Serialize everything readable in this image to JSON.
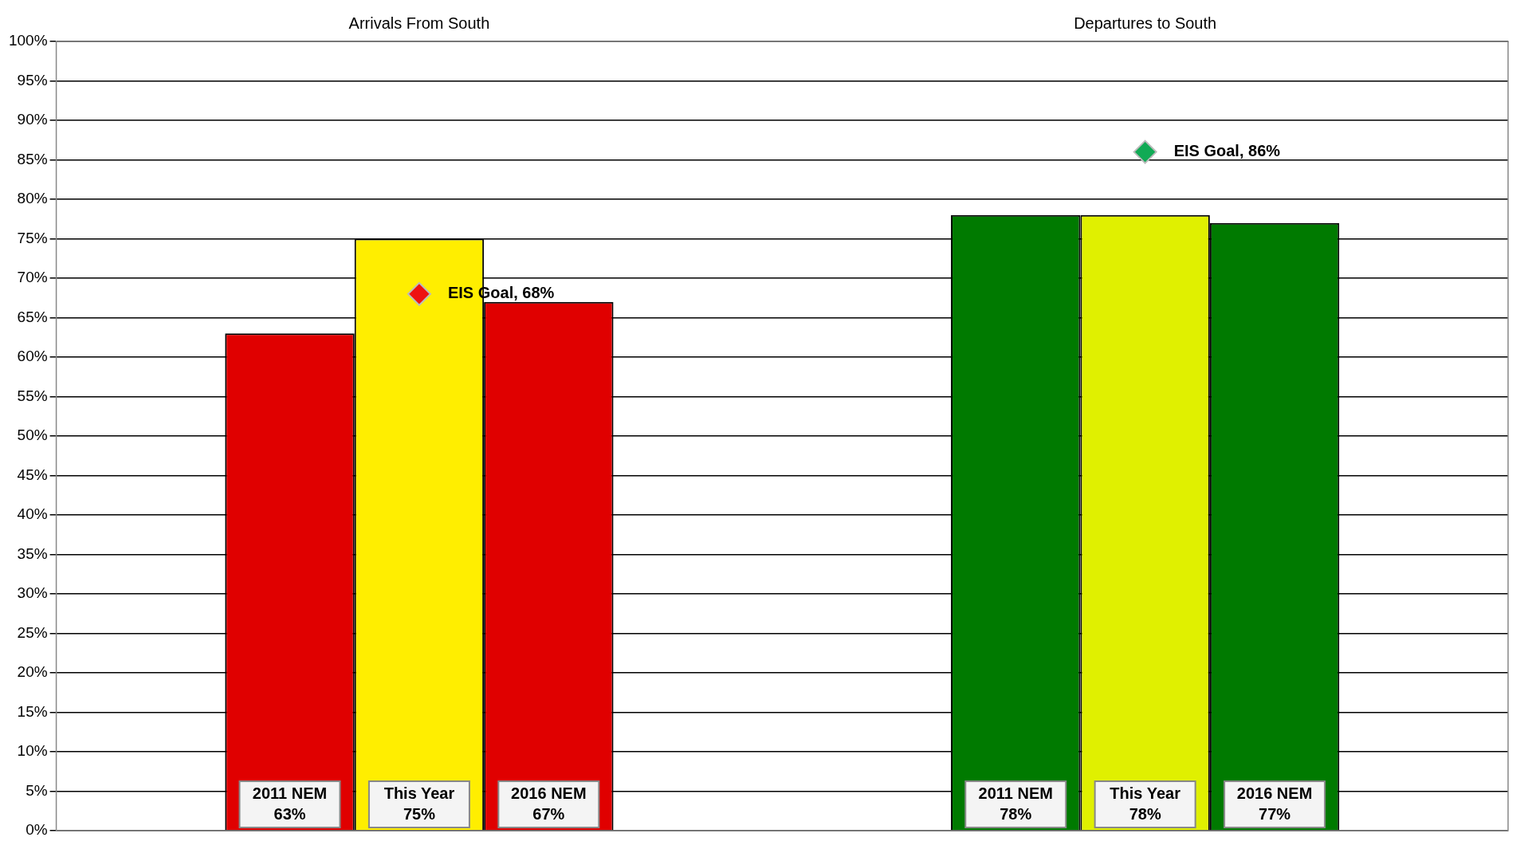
{
  "chart_data": {
    "type": "bar",
    "categories": [
      "Arrivals From South",
      "Departures to South"
    ],
    "series": [
      {
        "name": "2011 NEM",
        "colors": [
          "#e00000",
          "#007a00"
        ],
        "values": [
          63,
          78
        ],
        "value_labels": [
          "63%",
          "78%"
        ]
      },
      {
        "name": "This Year",
        "colors": [
          "#ffee00",
          "#e0f000"
        ],
        "values": [
          75,
          78
        ],
        "value_labels": [
          "75%",
          "78%"
        ]
      },
      {
        "name": "2016 NEM",
        "colors": [
          "#e00000",
          "#007a00"
        ],
        "values": [
          67,
          77
        ],
        "value_labels": [
          "67%",
          "77%"
        ]
      },
      {
        "type": "scatter",
        "colors": [
          "#ee1111",
          "#11aa55"
        ],
        "values": [
          68,
          86
        ],
        "value_labels": [
          "EIS Goal, 68%",
          "EIS Goal, 86%"
        ]
      }
    ],
    "ylim": [
      0,
      100
    ],
    "yticks": [
      {
        "value": 0,
        "label": "0%"
      },
      {
        "value": 5,
        "label": "5%"
      },
      {
        "value": 10,
        "label": "10%"
      },
      {
        "value": 15,
        "label": "15%"
      },
      {
        "value": 20,
        "label": "20%"
      },
      {
        "value": 25,
        "label": "25%"
      },
      {
        "value": 30,
        "label": "30%"
      },
      {
        "value": 35,
        "label": "35%"
      },
      {
        "value": 40,
        "label": "40%"
      },
      {
        "value": 45,
        "label": "45%"
      },
      {
        "value": 50,
        "label": "50%"
      },
      {
        "value": 55,
        "label": "55%"
      },
      {
        "value": 60,
        "label": "60%"
      },
      {
        "value": 65,
        "label": "65%"
      },
      {
        "value": 70,
        "label": "70%"
      },
      {
        "value": 75,
        "label": "75%"
      },
      {
        "value": 80,
        "label": "80%"
      },
      {
        "value": 85,
        "label": "85%"
      },
      {
        "value": 90,
        "label": "90%"
      },
      {
        "value": 95,
        "label": "95%"
      },
      {
        "value": 100,
        "label": "100%"
      }
    ],
    "grid": "y",
    "marker": "diamond",
    "legend": false
  }
}
